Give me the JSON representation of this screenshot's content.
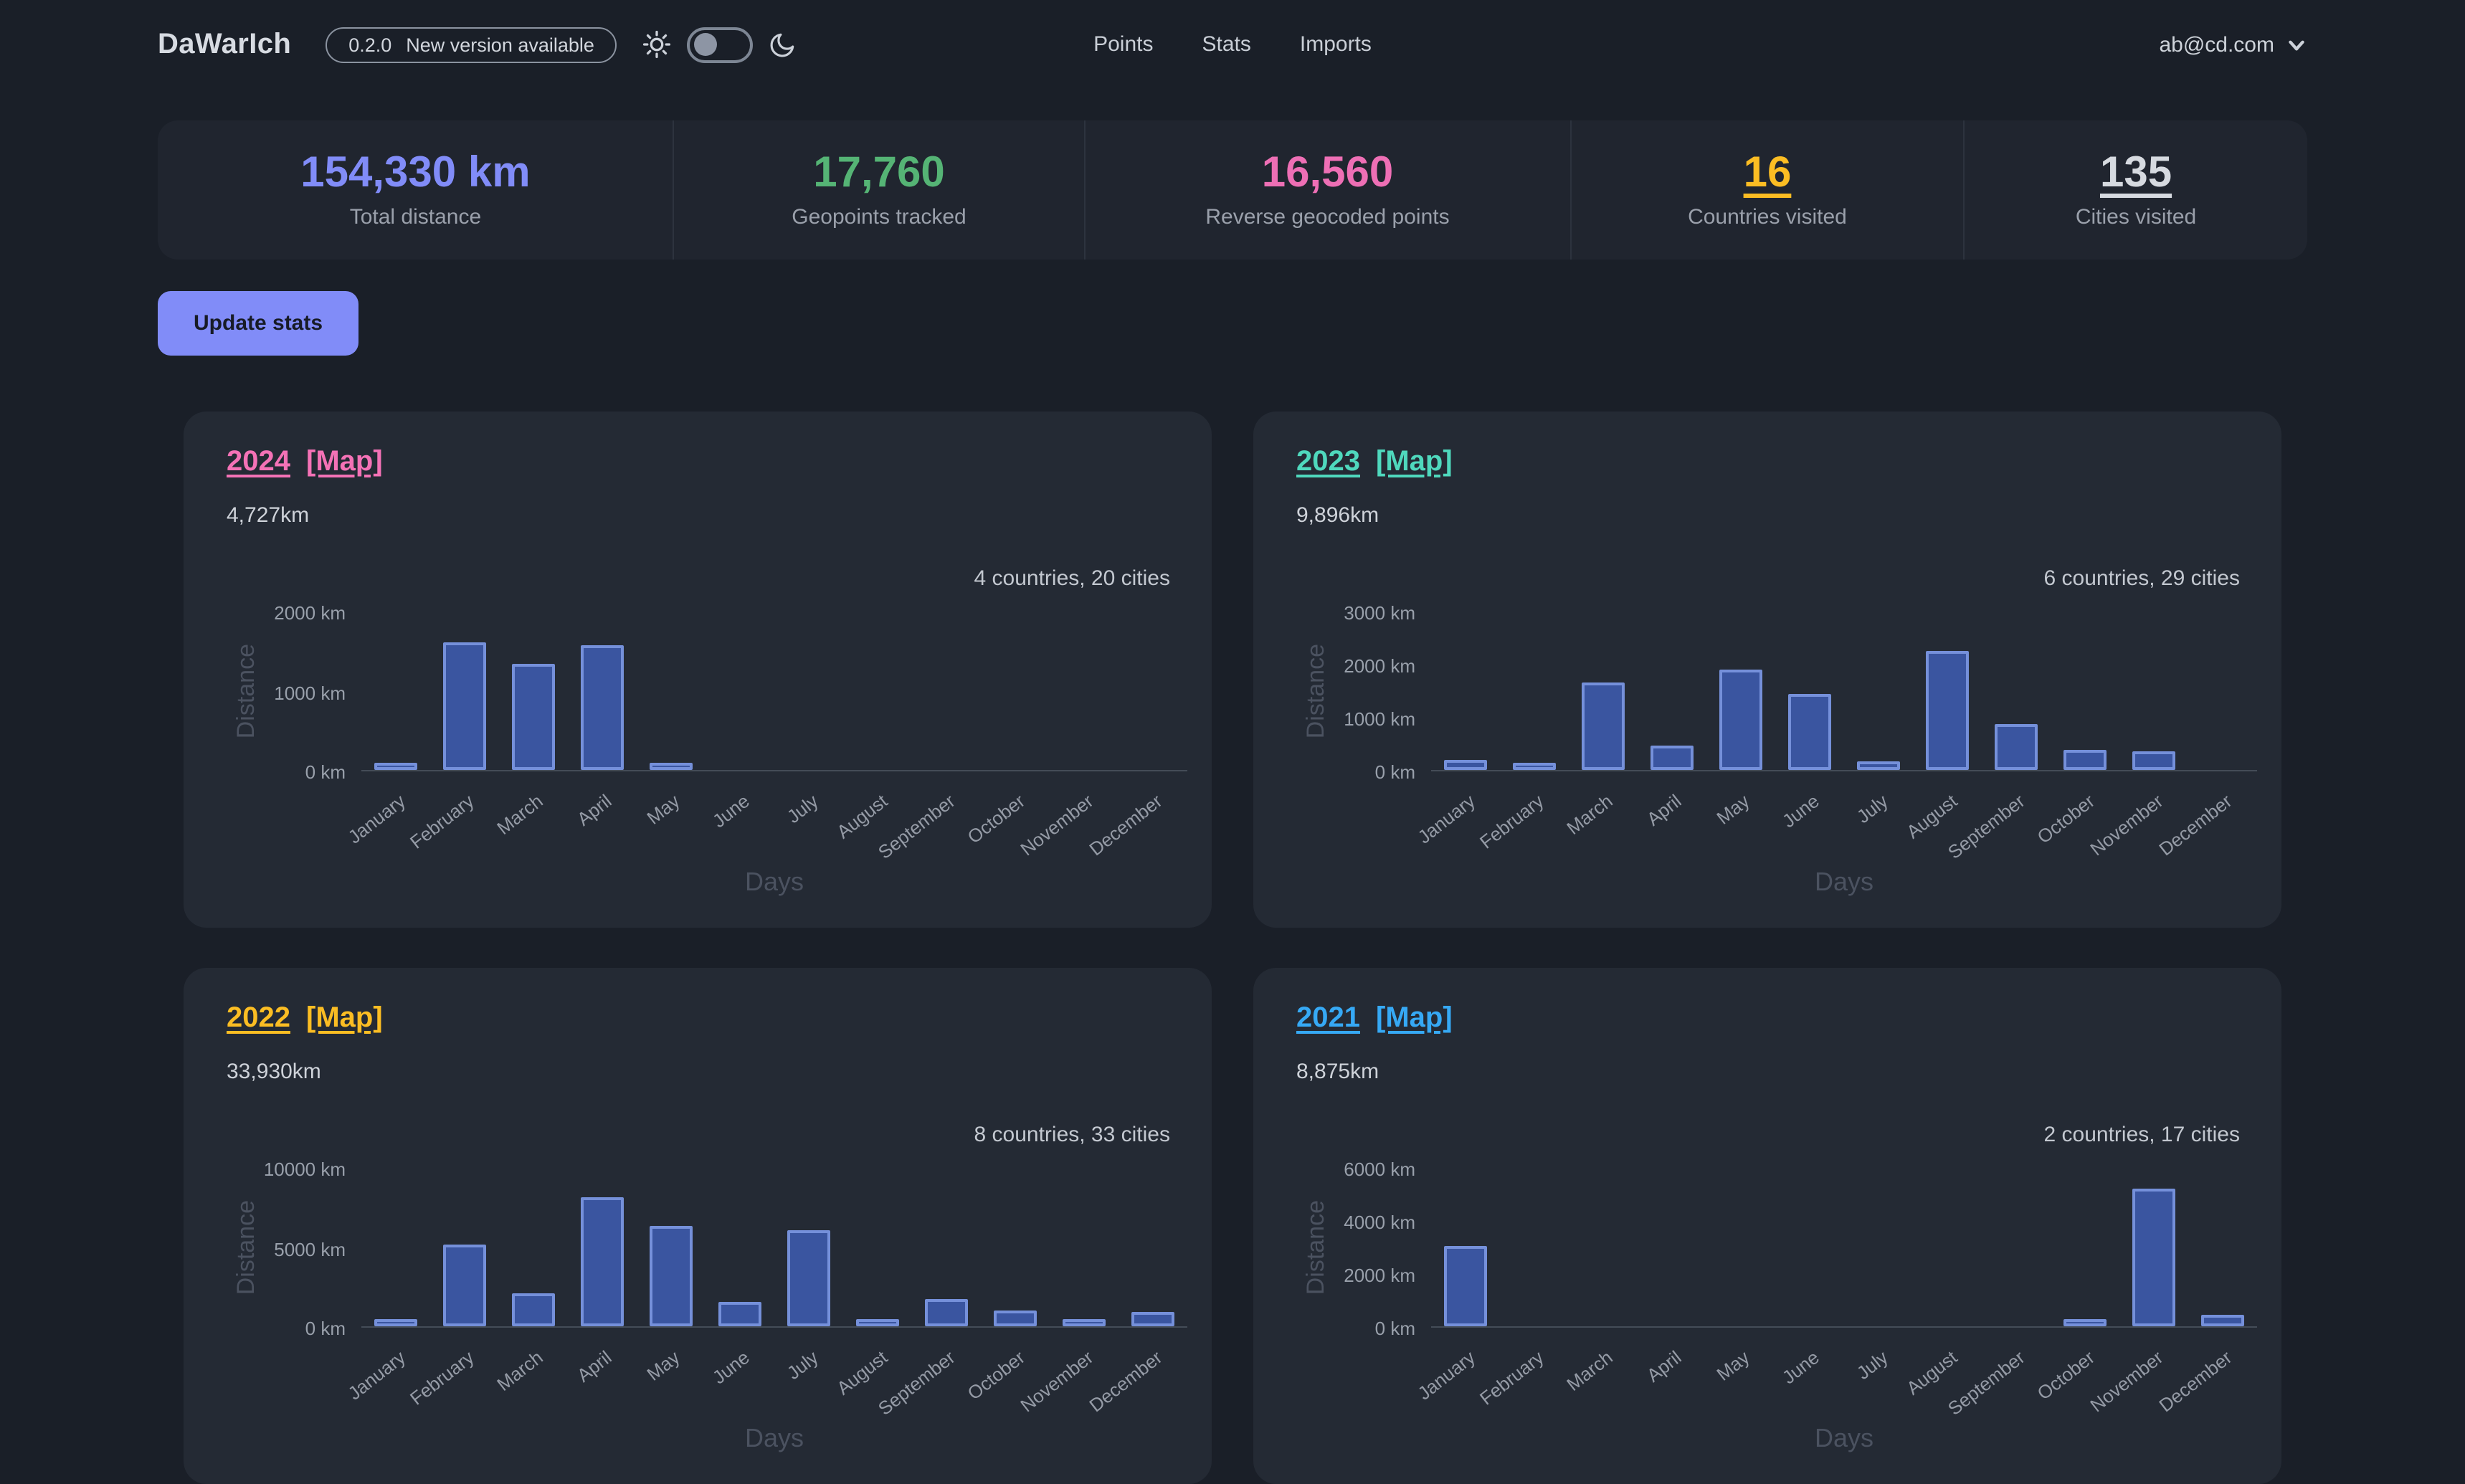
{
  "navbar": {
    "brand": "DaWarIch",
    "version_badge": {
      "version": "0.2.0",
      "message": "New version available"
    },
    "links": [
      {
        "label": "Points"
      },
      {
        "label": "Stats"
      },
      {
        "label": "Imports"
      }
    ],
    "user_email": "ab@cd.com"
  },
  "stats": [
    {
      "value": "154,330 km",
      "label": "Total distance",
      "color": "#818cf8",
      "underline": false
    },
    {
      "value": "17,760",
      "label": "Geopoints tracked",
      "color": "#55b475",
      "underline": false
    },
    {
      "value": "16,560",
      "label": "Reverse geocoded points",
      "color": "#ee6fb5",
      "underline": false
    },
    {
      "value": "16",
      "label": "Countries visited",
      "color": "#fbbd23",
      "underline": true
    },
    {
      "value": "135",
      "label": "Cities visited",
      "color": "#d6dae0",
      "underline": true
    }
  ],
  "update_button": {
    "label": "Update stats",
    "bg": "#818cf8",
    "text_color": "#171b26"
  },
  "chart_common": {
    "ylabel": "Distance",
    "xlabel": "Days",
    "bar_fill": "#3a55a0",
    "bar_border": "#7590da",
    "months": [
      "January",
      "February",
      "March",
      "April",
      "May",
      "June",
      "July",
      "August",
      "September",
      "October",
      "November",
      "December"
    ]
  },
  "cards": [
    {
      "year": "2024",
      "map_label": "[Map]",
      "link_color": "#f472b6",
      "distance": "4,727km",
      "summary": "4 countries, 20 cities",
      "chart": {
        "type": "bar",
        "ymax": 2000,
        "yticks": [
          {
            "value": 0,
            "label": "0 km"
          },
          {
            "value": 1000,
            "label": "1000 km"
          },
          {
            "value": 2000,
            "label": "2000 km"
          }
        ],
        "values": [
          90,
          1600,
          1330,
          1560,
          90,
          0,
          0,
          0,
          0,
          0,
          0,
          0
        ]
      }
    },
    {
      "year": "2023",
      "map_label": "[Map]",
      "link_color": "#4fd8bd",
      "distance": "9,896km",
      "summary": "6 countries, 29 cities",
      "chart": {
        "type": "bar",
        "ymax": 3000,
        "yticks": [
          {
            "value": 0,
            "label": "0 km"
          },
          {
            "value": 1000,
            "label": "1000 km"
          },
          {
            "value": 2000,
            "label": "2000 km"
          },
          {
            "value": 3000,
            "label": "3000 km"
          }
        ],
        "values": [
          180,
          140,
          1650,
          460,
          1900,
          1420,
          150,
          2250,
          860,
          390,
          340,
          0
        ]
      }
    },
    {
      "year": "2022",
      "map_label": "[Map]",
      "link_color": "#fbbd23",
      "distance": "33,930km",
      "summary": "8 countries, 33 cities",
      "chart": {
        "type": "bar",
        "ymax": 10000,
        "yticks": [
          {
            "value": 0,
            "label": "0 km"
          },
          {
            "value": 5000,
            "label": "5000 km"
          },
          {
            "value": 10000,
            "label": "10000 km"
          }
        ],
        "values": [
          250,
          5150,
          2100,
          8150,
          6350,
          1500,
          6000,
          300,
          1750,
          950,
          350,
          900
        ]
      }
    },
    {
      "year": "2021",
      "map_label": "[Map]",
      "link_color": "#36a9f5",
      "distance": "8,875km",
      "summary": "2 countries, 17 cities",
      "chart": {
        "type": "bar",
        "ymax": 6000,
        "yticks": [
          {
            "value": 0,
            "label": "0 km"
          },
          {
            "value": 2000,
            "label": "2000 km"
          },
          {
            "value": 4000,
            "label": "4000 km"
          },
          {
            "value": 6000,
            "label": "6000 km"
          }
        ],
        "values": [
          3050,
          0,
          0,
          0,
          0,
          0,
          0,
          0,
          0,
          150,
          5200,
          450
        ]
      }
    }
  ]
}
